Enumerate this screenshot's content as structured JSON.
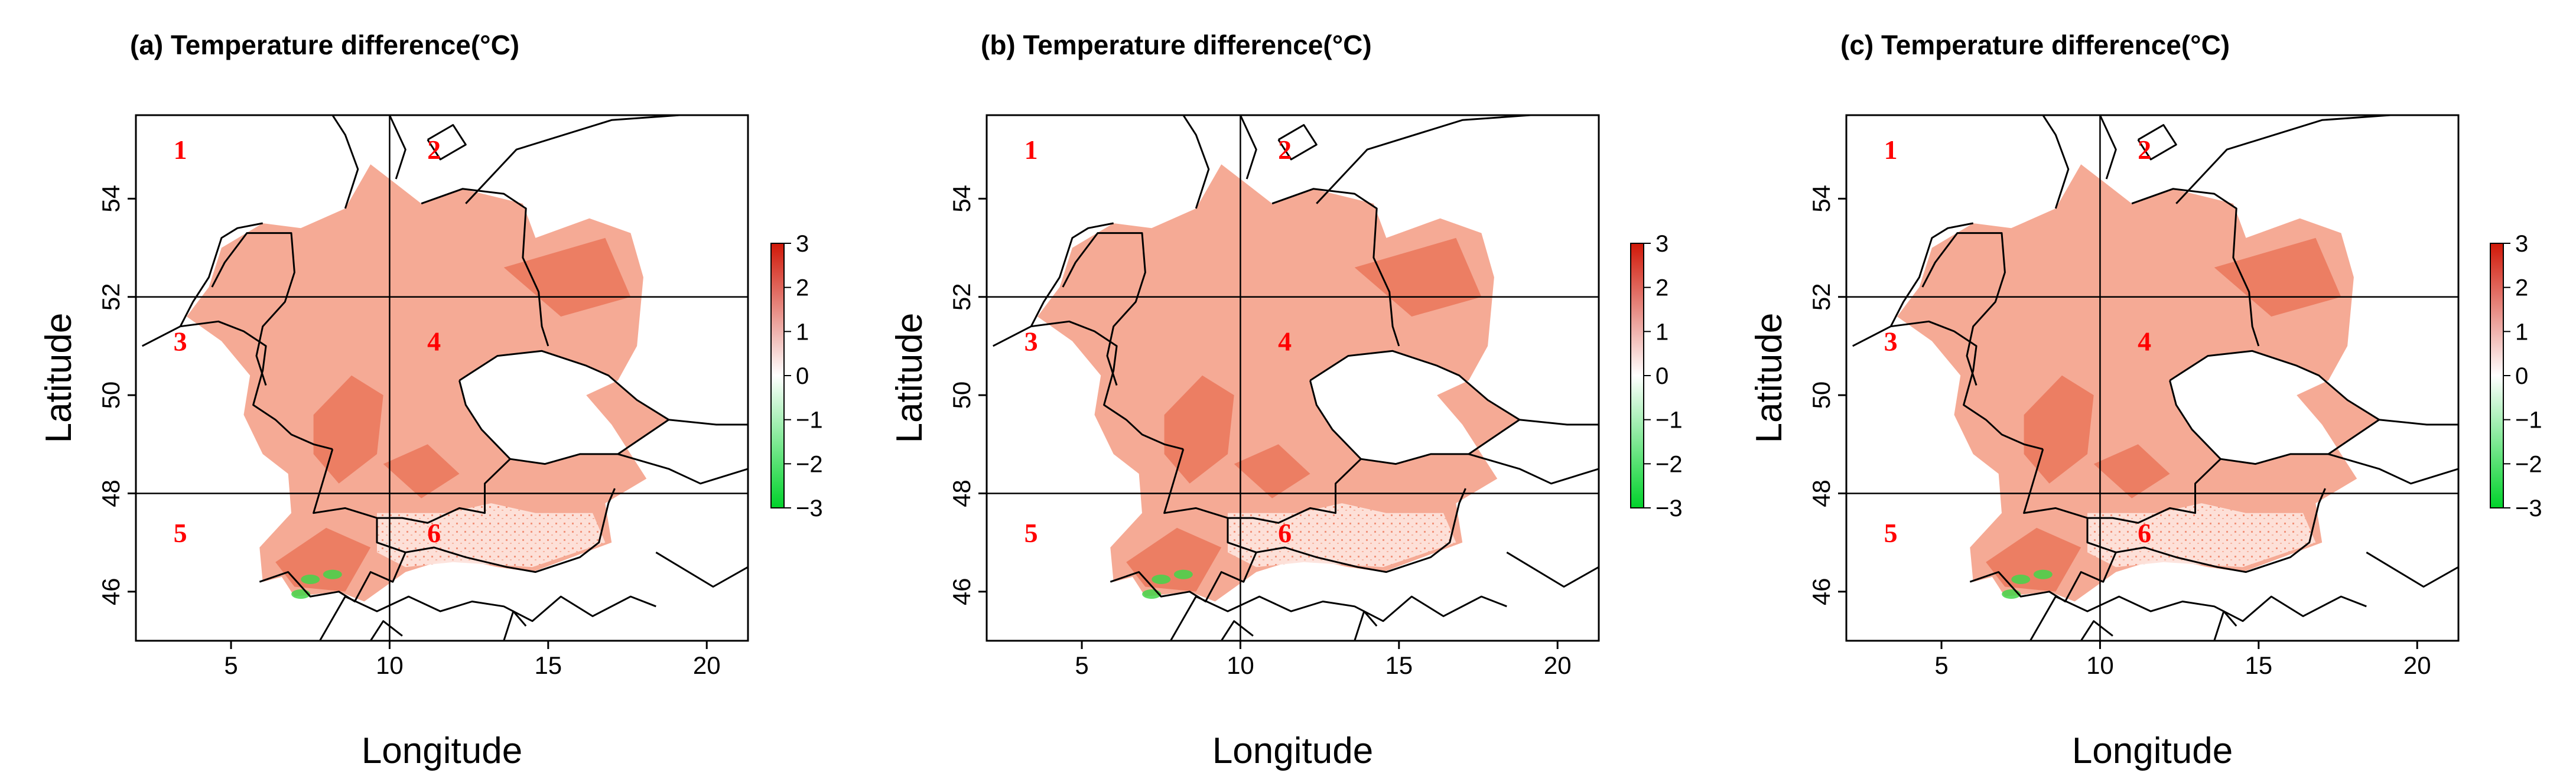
{
  "figure": {
    "panels": [
      {
        "title": "(a) Temperature difference(°C)",
        "variant": "a"
      },
      {
        "title": "(b) Temperature difference(°C)",
        "variant": "b"
      },
      {
        "title": "(c) Temperature difference(°C)",
        "variant": "c"
      }
    ],
    "xlabel": "Longitude",
    "ylabel": "Latitude",
    "x_ticks": [
      5,
      10,
      15,
      20
    ],
    "y_ticks": [
      46,
      48,
      50,
      52,
      54
    ],
    "x_range": [
      2,
      21.3
    ],
    "y_range": [
      45,
      55.7
    ],
    "divider_lon": 10,
    "divider_lats": [
      48,
      52
    ],
    "region_labels": [
      {
        "text": "1",
        "lon": 3.4,
        "lat": 55.0
      },
      {
        "text": "2",
        "lon": 11.4,
        "lat": 55.0
      },
      {
        "text": "3",
        "lon": 3.4,
        "lat": 51.1
      },
      {
        "text": "4",
        "lon": 11.4,
        "lat": 51.1
      },
      {
        "text": "5",
        "lon": 3.4,
        "lat": 47.2
      },
      {
        "text": "6",
        "lon": 11.4,
        "lat": 47.2
      }
    ],
    "colorbar": {
      "ticks": [
        "3",
        "2",
        "1",
        "0",
        "−1",
        "−2",
        "−3"
      ],
      "min": -3,
      "max": 3,
      "colors": [
        "#00d22a",
        "#ffffff",
        "#d01808"
      ]
    },
    "colors": {
      "region_label": "#ff0000",
      "field": "#f4a18a",
      "field_dark": "#e45a3a",
      "border": "#000000"
    }
  }
}
